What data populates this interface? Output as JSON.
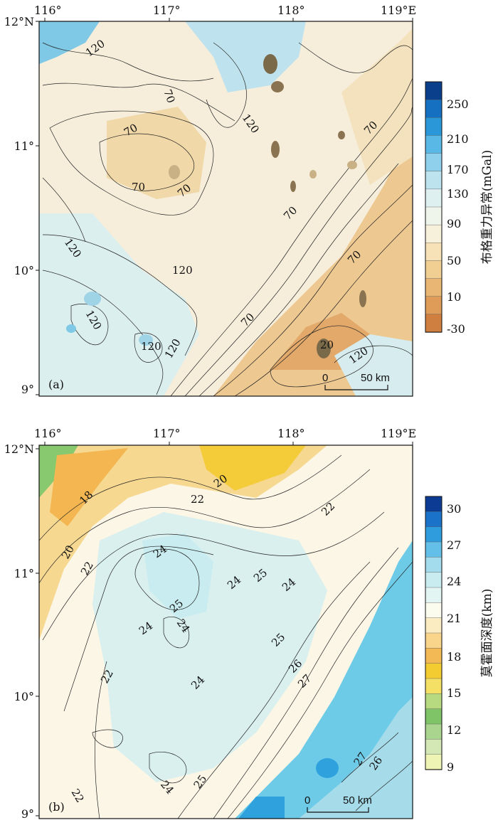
{
  "panels": [
    {
      "id": "a",
      "panel_label": "(a)",
      "x_ticks": [
        "116°",
        "117°",
        "118°",
        "119°E"
      ],
      "y_ticks": [
        "12°N",
        "11°",
        "10°",
        "9°"
      ],
      "scale_bar": {
        "start": "0",
        "end": "50 km"
      },
      "colorbar": {
        "title": "布格重力异常(mGal)",
        "ticks": [
          "250",
          "210",
          "170",
          "130",
          "90",
          "50",
          "10",
          "-30"
        ],
        "colors": [
          "#0a3f8c",
          "#1670c2",
          "#2a98d8",
          "#5ab8e6",
          "#8fd0ec",
          "#bde3ef",
          "#dff0f1",
          "#f0f5ec",
          "#f7f0da",
          "#f6e2b6",
          "#f1cf92",
          "#e9b773",
          "#de9c58",
          "#cf7f3f"
        ]
      },
      "contour_labels": [
        "120",
        "70",
        "120",
        "70",
        "70",
        "70",
        "120",
        "70",
        "70",
        "70",
        "120",
        "120",
        "120",
        "120",
        "120",
        "70",
        "70",
        "120",
        "120",
        "120",
        "70",
        "20",
        "120"
      ]
    },
    {
      "id": "b",
      "panel_label": "(b)",
      "x_ticks": [
        "116°",
        "117°",
        "118°",
        "119°E"
      ],
      "y_ticks": [
        "12°N",
        "11°",
        "10°",
        "9°"
      ],
      "scale_bar": {
        "start": "0",
        "end": "50 km"
      },
      "colorbar": {
        "title": "莫霍面深度(km)",
        "ticks": [
          "30",
          "27",
          "24",
          "21",
          "18",
          "15",
          "12",
          "9"
        ],
        "colors": [
          "#0b3b93",
          "#1a73c9",
          "#2f9ddd",
          "#63bfe8",
          "#a3dcec",
          "#c9ecf0",
          "#e3f5f3",
          "#fbfbee",
          "#fbecc2",
          "#f8d58a",
          "#f3b955",
          "#f2cc31",
          "#f4e064",
          "#b7d97f",
          "#7fc467",
          "#a9d58e",
          "#d4e8b5",
          "#eef4b3"
        ]
      },
      "contour_labels": [
        "20",
        "18",
        "22",
        "22",
        "20",
        "22",
        "24",
        "24",
        "25",
        "24",
        "25",
        "24",
        "24",
        "25",
        "26",
        "27",
        "22",
        "24",
        "24",
        "22",
        "25",
        "27",
        "26"
      ]
    }
  ],
  "legend_unit_colors": {
    "gravity_high": "#1670c2",
    "gravity_low": "#cf7f3f",
    "moho_deep": "#1a73c9",
    "moho_shallow": "#f2cc31"
  }
}
